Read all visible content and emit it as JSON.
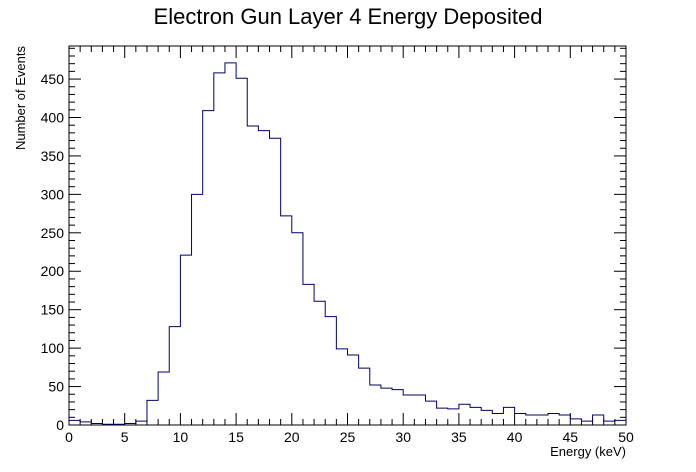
{
  "chart_data": {
    "type": "bar",
    "title": "Electron Gun Layer 4 Energy Deposited",
    "xlabel": "Energy (keV)",
    "ylabel": "Number of Events",
    "xlim": [
      0,
      50
    ],
    "ylim": [
      0,
      493
    ],
    "bin_width": 1,
    "x": [
      0.5,
      1.5,
      2.5,
      3.5,
      4.5,
      5.5,
      6.5,
      7.5,
      8.5,
      9.5,
      10.5,
      11.5,
      12.5,
      13.5,
      14.5,
      15.5,
      16.5,
      17.5,
      18.5,
      19.5,
      20.5,
      21.5,
      22.5,
      23.5,
      24.5,
      25.5,
      26.5,
      27.5,
      28.5,
      29.5,
      30.5,
      31.5,
      32.5,
      33.5,
      34.5,
      35.5,
      36.5,
      37.5,
      38.5,
      39.5,
      40.5,
      41.5,
      42.5,
      43.5,
      44.5,
      45.5,
      46.5,
      47.5,
      48.5,
      49.5
    ],
    "values": [
      6,
      4,
      2,
      1,
      1,
      2,
      5,
      32,
      69,
      128,
      221,
      300,
      409,
      458,
      471,
      451,
      389,
      383,
      373,
      272,
      250,
      183,
      161,
      141,
      99,
      91,
      74,
      52,
      48,
      46,
      39,
      39,
      31,
      22,
      21,
      27,
      23,
      19,
      15,
      23,
      15,
      13,
      13,
      15,
      13,
      8,
      5,
      13,
      5,
      6
    ],
    "x_ticks": [
      0,
      5,
      10,
      15,
      20,
      25,
      30,
      35,
      40,
      45,
      50
    ],
    "y_ticks": [
      0,
      50,
      100,
      150,
      200,
      250,
      300,
      350,
      400,
      450
    ],
    "line_color": "#00006b",
    "grid": false,
    "legend": "none"
  }
}
